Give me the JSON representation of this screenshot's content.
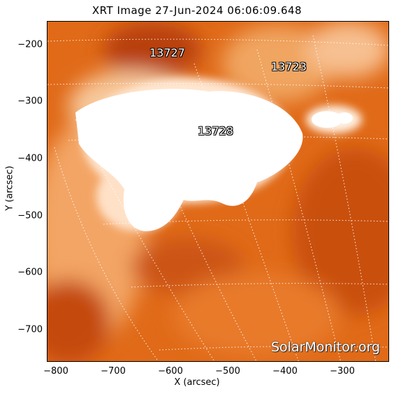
{
  "title": "XRT Image 27-Jun-2024 06:06:09.648",
  "axes": {
    "xlabel": "X (arcsec)",
    "ylabel": "Y (arcsec)",
    "xticks": [
      "−800",
      "−700",
      "−600",
      "−500",
      "−400",
      "−300"
    ],
    "yticks": [
      "−200",
      "−300",
      "−400",
      "−500",
      "−600",
      "−700"
    ]
  },
  "regions": [
    {
      "id": "13727",
      "label": "13727"
    },
    {
      "id": "13723",
      "label": "13723"
    },
    {
      "id": "13728",
      "label": "13728"
    }
  ],
  "watermark": "SolarMonitor.org",
  "colors": {
    "dark": "#c2410a",
    "mid": "#e8731c",
    "light": "#f7b97e",
    "white": "#ffffff"
  }
}
